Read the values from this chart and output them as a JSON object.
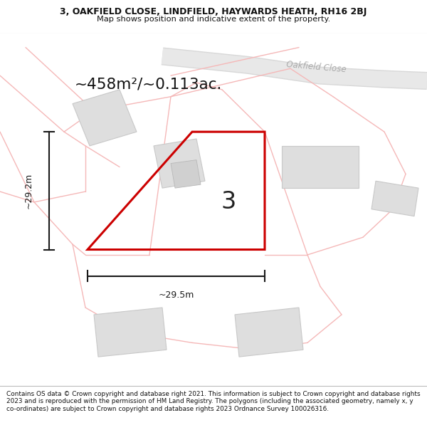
{
  "title_line1": "3, OAKFIELD CLOSE, LINDFIELD, HAYWARDS HEATH, RH16 2BJ",
  "title_line2": "Map shows position and indicative extent of the property.",
  "footer_text": "Contains OS data © Crown copyright and database right 2021. This information is subject to Crown copyright and database rights 2023 and is reproduced with the permission of HM Land Registry. The polygons (including the associated geometry, namely x, y co-ordinates) are subject to Crown copyright and database rights 2023 Ordnance Survey 100026316.",
  "area_label": "~458m²/~0.113ac.",
  "dim_height": "~29.2m",
  "dim_width": "~29.5m",
  "plot_number": "3",
  "road_label": "Oakfield Close",
  "bg_color": "#f2f2f2",
  "plot_edge_color": "#cc0000",
  "plot_linewidth": 2.2,
  "dim_color": "#1a1a1a",
  "faint_line_color": "#f5b8b8",
  "building_fill": "#dedede",
  "building_edge": "#c8c8c8"
}
